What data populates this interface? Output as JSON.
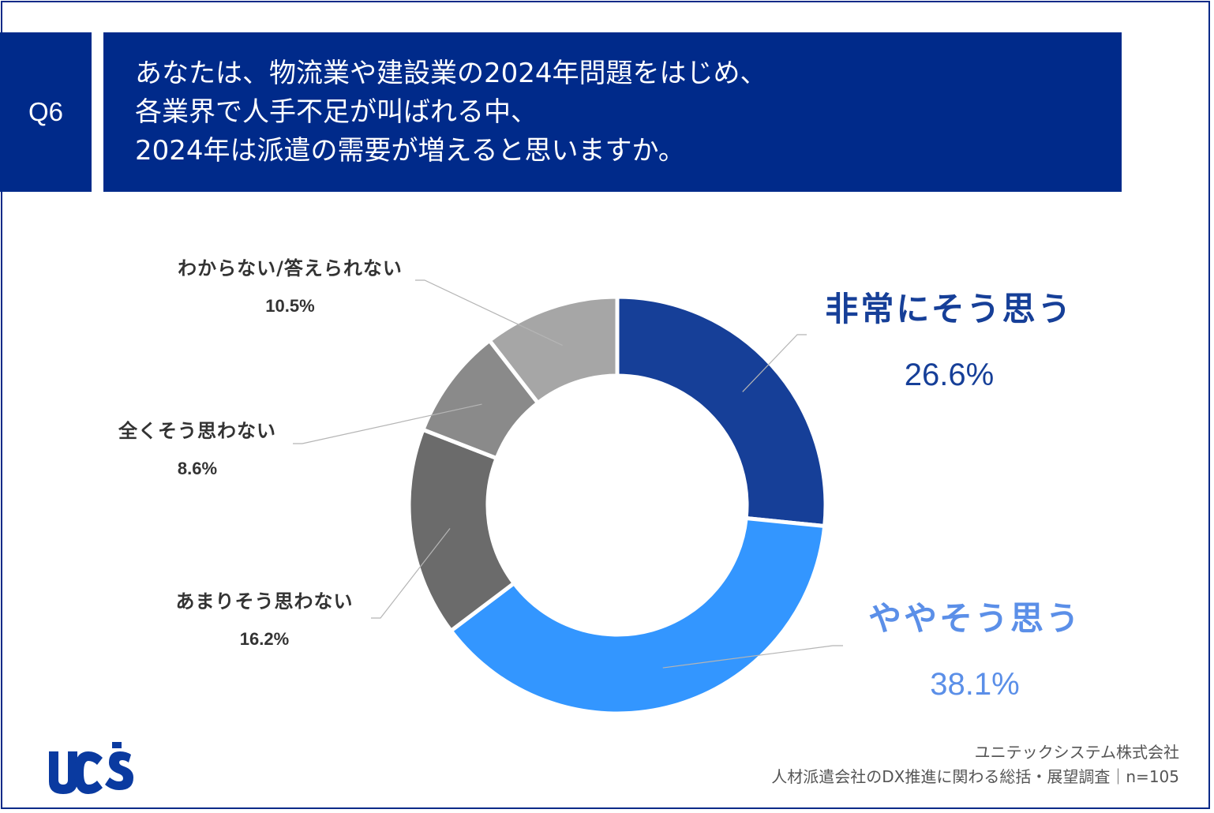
{
  "question": {
    "number": "Q6",
    "lines": [
      "あなたは、物流業や建設業の2024年問題をはじめ、",
      "各業界で人手不足が叫ばれる中、",
      "2024年は派遣の需要が増えると思いますか。"
    ]
  },
  "chart_data": {
    "type": "pie",
    "donut": true,
    "categories": [
      "非常にそう思う",
      "ややそう思う",
      "あまりそう思わない",
      "全くそう思わない",
      "わからない/答えられない"
    ],
    "values": [
      26.6,
      38.1,
      16.2,
      8.6,
      10.5
    ],
    "value_labels": [
      "26.6%",
      "38.1%",
      "16.2%",
      "8.6%",
      "10.5%"
    ],
    "colors": [
      "#163f98",
      "#3396ff",
      "#6b6b6b",
      "#8a8a8a",
      "#a6a6a6"
    ],
    "label_colors": [
      "#163f98",
      "#5b8fe8",
      "#333333",
      "#333333",
      "#333333"
    ]
  },
  "footer": {
    "company": "ユニテックシステム株式会社",
    "survey": "人材派遣会社のDX推進に関わる総括・展望調査｜n=105"
  },
  "logo": {
    "text": "ucs",
    "color": "#0a3aa0"
  }
}
